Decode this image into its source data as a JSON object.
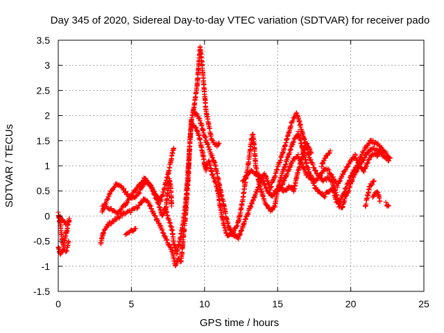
{
  "chart_data": {
    "type": "scatter",
    "title": "Day 345 of 2020, Sidereal Day-to-day VTEC variation (SDTVAR) for receiver pado",
    "xlabel": "GPS time / hours",
    "ylabel": "SDTVAR / TECUs",
    "xlim": [
      0,
      25
    ],
    "ylim": [
      -1.5,
      3.5
    ],
    "x_ticks": [
      0,
      5,
      10,
      15,
      20,
      25
    ],
    "x_tick_labels": [
      "0",
      "5",
      "10",
      "15",
      "20",
      "25"
    ],
    "y_ticks": [
      -1.5,
      -1,
      -0.5,
      0,
      0.5,
      1,
      1.5,
      2,
      2.5,
      3,
      3.5
    ],
    "y_tick_labels": [
      "-1.5",
      "-1",
      "-0.5",
      "0",
      "0.5",
      "1",
      "1.5",
      "2",
      "2.5",
      "3",
      "3.5"
    ],
    "grid": true,
    "marker": "+",
    "series": [
      {
        "name": "SDTVAR",
        "color": "#ff0000",
        "traces": [
          [
            [
              0.0,
              0.05
            ],
            [
              0.15,
              -0.2
            ],
            [
              0.25,
              -0.45
            ],
            [
              0.35,
              -0.6
            ],
            [
              0.5,
              -0.4
            ],
            [
              0.65,
              -0.2
            ],
            [
              0.75,
              -0.05
            ]
          ],
          [
            [
              0.0,
              -0.6
            ],
            [
              0.15,
              -0.75
            ],
            [
              0.35,
              -0.65
            ],
            [
              0.55,
              -0.7
            ],
            [
              0.7,
              -0.5
            ]
          ],
          [
            [
              0.05,
              0.0
            ],
            [
              0.3,
              -0.1
            ],
            [
              0.5,
              -0.15
            ],
            [
              0.75,
              -0.1
            ]
          ],
          [
            [
              2.9,
              -0.55
            ],
            [
              3.1,
              -0.3
            ],
            [
              3.5,
              -0.15
            ],
            [
              4.0,
              -0.05
            ],
            [
              4.5,
              0.05
            ],
            [
              5.0,
              0.1
            ],
            [
              5.5,
              0.2
            ],
            [
              5.9,
              0.35
            ],
            [
              6.2,
              0.25
            ],
            [
              6.5,
              0.05
            ],
            [
              6.9,
              -0.15
            ],
            [
              7.2,
              -0.35
            ],
            [
              7.5,
              -0.55
            ],
            [
              7.8,
              -0.7
            ],
            [
              8.0,
              -1.0
            ],
            [
              8.2,
              -0.85
            ],
            [
              8.4,
              -0.9
            ],
            [
              8.5,
              -0.6
            ]
          ],
          [
            [
              3.0,
              0.1
            ],
            [
              3.3,
              0.3
            ],
            [
              3.6,
              0.5
            ],
            [
              4.0,
              0.65
            ],
            [
              4.4,
              0.55
            ],
            [
              4.8,
              0.4
            ],
            [
              5.2,
              0.35
            ],
            [
              5.6,
              0.5
            ],
            [
              6.0,
              0.7
            ],
            [
              6.3,
              0.6
            ],
            [
              6.6,
              0.45
            ],
            [
              7.0,
              0.3
            ],
            [
              7.3,
              0.6
            ],
            [
              7.6,
              0.95
            ],
            [
              7.8,
              1.25
            ],
            [
              7.9,
              1.35
            ]
          ],
          [
            [
              3.0,
              0.2
            ],
            [
              3.5,
              0.15
            ],
            [
              4.0,
              0.05
            ],
            [
              4.5,
              0.2
            ],
            [
              5.0,
              0.4
            ],
            [
              5.5,
              0.6
            ],
            [
              5.9,
              0.75
            ],
            [
              6.3,
              0.6
            ],
            [
              6.6,
              0.4
            ],
            [
              6.9,
              0.2
            ],
            [
              7.1,
              0.0
            ],
            [
              7.3,
              0.15
            ],
            [
              7.6,
              -0.1
            ],
            [
              7.8,
              -0.3
            ],
            [
              7.9,
              -0.55
            ],
            [
              8.1,
              -0.75
            ],
            [
              8.3,
              -0.5
            ],
            [
              8.5,
              -0.2
            ],
            [
              8.7,
              0.2
            ],
            [
              8.9,
              1.0
            ],
            [
              9.1,
              1.9
            ],
            [
              9.3,
              2.2
            ],
            [
              9.5,
              2.6
            ],
            [
              9.6,
              3.0
            ],
            [
              9.7,
              3.35
            ],
            [
              9.8,
              3.1
            ],
            [
              9.9,
              2.8
            ],
            [
              10.0,
              2.45
            ],
            [
              10.1,
              2.1
            ],
            [
              10.3,
              1.8
            ],
            [
              10.5,
              1.5
            ],
            [
              10.7,
              1.45
            ],
            [
              10.9,
              1.4
            ],
            [
              11.0,
              1.45
            ]
          ],
          [
            [
              4.6,
              -0.35
            ],
            [
              5.0,
              -0.3
            ],
            [
              5.3,
              -0.25
            ]
          ],
          [
            [
              7.35,
              0.1
            ],
            [
              7.5,
              0.55
            ],
            [
              7.6,
              0.75
            ],
            [
              7.7,
              0.55
            ],
            [
              7.75,
              0.2
            ]
          ],
          [
            [
              8.5,
              -0.6
            ],
            [
              8.7,
              0.0
            ],
            [
              8.9,
              0.8
            ],
            [
              9.0,
              1.5
            ],
            [
              9.1,
              1.85
            ],
            [
              9.3,
              1.8
            ],
            [
              9.5,
              1.7
            ],
            [
              9.7,
              1.5
            ],
            [
              9.9,
              1.2
            ],
            [
              10.1,
              0.9
            ],
            [
              10.3,
              1.1
            ],
            [
              10.5,
              0.85
            ],
            [
              10.7,
              0.7
            ],
            [
              10.9,
              0.5
            ],
            [
              11.1,
              0.15
            ],
            [
              11.3,
              -0.15
            ],
            [
              11.5,
              -0.35
            ],
            [
              11.7,
              -0.4
            ],
            [
              11.9,
              -0.35
            ],
            [
              12.1,
              -0.25
            ],
            [
              12.3,
              -0.15
            ],
            [
              12.4,
              0.0
            ],
            [
              12.6,
              0.3
            ],
            [
              12.8,
              0.7
            ],
            [
              13.0,
              1.05
            ],
            [
              13.2,
              1.5
            ],
            [
              13.3,
              1.65
            ],
            [
              13.4,
              1.4
            ],
            [
              13.5,
              1.0
            ],
            [
              13.7,
              0.7
            ],
            [
              13.9,
              0.5
            ],
            [
              14.1,
              0.3
            ],
            [
              14.4,
              0.15
            ],
            [
              14.6,
              0.1
            ],
            [
              14.8,
              0.2
            ],
            [
              15.0,
              0.5
            ],
            [
              15.2,
              0.75
            ],
            [
              15.5,
              1.0
            ],
            [
              15.8,
              1.25
            ],
            [
              16.1,
              1.5
            ],
            [
              16.4,
              1.65
            ],
            [
              16.7,
              1.35
            ],
            [
              17.0,
              1.0
            ],
            [
              17.3,
              0.75
            ],
            [
              17.6,
              0.55
            ],
            [
              17.9,
              0.45
            ],
            [
              18.2,
              0.4
            ],
            [
              18.5,
              0.5
            ],
            [
              18.8,
              0.55
            ],
            [
              19.0,
              0.3
            ],
            [
              19.2,
              0.25
            ],
            [
              19.5,
              0.45
            ],
            [
              19.8,
              0.65
            ],
            [
              20.1,
              0.85
            ],
            [
              20.5,
              1.05
            ],
            [
              20.8,
              1.25
            ],
            [
              21.1,
              1.4
            ],
            [
              21.4,
              1.5
            ],
            [
              21.7,
              1.45
            ],
            [
              22.0,
              1.4
            ]
          ],
          [
            [
              9.3,
              2.05
            ],
            [
              9.5,
              2.0
            ],
            [
              9.7,
              1.9
            ],
            [
              9.9,
              1.7
            ],
            [
              10.1,
              1.5
            ],
            [
              10.3,
              1.35
            ],
            [
              10.5,
              1.2
            ],
            [
              10.7,
              1.05
            ],
            [
              10.9,
              0.8
            ],
            [
              11.1,
              0.5
            ],
            [
              11.3,
              0.25
            ],
            [
              11.5,
              -0.05
            ],
            [
              11.7,
              -0.25
            ],
            [
              11.9,
              -0.35
            ],
            [
              12.1,
              -0.4
            ],
            [
              12.3,
              -0.45
            ],
            [
              12.5,
              -0.3
            ],
            [
              12.7,
              -0.15
            ],
            [
              12.9,
              0.0
            ],
            [
              13.1,
              0.15
            ],
            [
              13.3,
              0.3
            ],
            [
              13.5,
              0.45
            ],
            [
              13.7,
              0.6
            ],
            [
              13.9,
              0.75
            ],
            [
              14.1,
              0.85
            ],
            [
              14.3,
              0.7
            ],
            [
              14.5,
              0.55
            ],
            [
              14.8,
              0.8
            ],
            [
              15.1,
              1.05
            ],
            [
              15.4,
              1.3
            ],
            [
              15.7,
              1.6
            ],
            [
              16.0,
              1.9
            ],
            [
              16.3,
              2.05
            ],
            [
              16.6,
              1.75
            ],
            [
              16.9,
              1.45
            ],
            [
              17.2,
              1.15
            ],
            [
              17.5,
              0.95
            ],
            [
              17.8,
              0.8
            ],
            [
              18.1,
              0.7
            ],
            [
              18.4,
              0.75
            ],
            [
              18.7,
              0.7
            ],
            [
              19.0,
              0.45
            ],
            [
              19.2,
              0.2
            ],
            [
              19.4,
              0.15
            ],
            [
              19.6,
              0.35
            ],
            [
              19.9,
              0.55
            ],
            [
              20.2,
              0.8
            ],
            [
              20.6,
              1.0
            ],
            [
              21.0,
              1.2
            ],
            [
              21.4,
              1.35
            ],
            [
              21.8,
              1.3
            ],
            [
              22.2,
              1.2
            ],
            [
              22.6,
              1.1
            ]
          ],
          [
            [
              12.6,
              0.7
            ],
            [
              12.9,
              0.8
            ],
            [
              13.2,
              0.9
            ],
            [
              13.5,
              0.85
            ],
            [
              13.8,
              0.8
            ],
            [
              14.0,
              0.7
            ],
            [
              14.3,
              0.5
            ],
            [
              14.6,
              0.4
            ],
            [
              14.9,
              0.5
            ],
            [
              15.2,
              0.55
            ],
            [
              15.5,
              0.75
            ],
            [
              15.8,
              0.95
            ],
            [
              16.1,
              1.15
            ],
            [
              16.4,
              1.2
            ],
            [
              16.7,
              1.0
            ],
            [
              17.0,
              0.8
            ],
            [
              17.3,
              0.75
            ],
            [
              17.6,
              0.7
            ],
            [
              17.9,
              0.8
            ],
            [
              18.2,
              0.95
            ],
            [
              18.5,
              0.9
            ],
            [
              18.8,
              0.75
            ],
            [
              19.1,
              0.6
            ],
            [
              19.4,
              0.8
            ],
            [
              19.7,
              0.95
            ],
            [
              20.0,
              1.1
            ],
            [
              20.3,
              1.2
            ],
            [
              20.6,
              1.0
            ],
            [
              20.9,
              0.9
            ],
            [
              21.2,
              1.1
            ],
            [
              21.5,
              1.25
            ],
            [
              21.8,
              1.2
            ],
            [
              22.1,
              1.35
            ],
            [
              22.4,
              1.25
            ],
            [
              22.7,
              1.15
            ]
          ],
          [
            [
              15.2,
              0.55
            ],
            [
              15.5,
              0.5
            ],
            [
              15.8,
              0.6
            ],
            [
              16.1,
              0.5
            ],
            [
              16.4,
              0.9
            ],
            [
              16.7,
              1.2
            ],
            [
              17.0,
              1.45
            ],
            [
              17.3,
              1.25
            ]
          ],
          [
            [
              18.0,
              1.0
            ],
            [
              18.3,
              1.2
            ],
            [
              18.6,
              1.3
            ]
          ],
          [
            [
              21.0,
              0.2
            ],
            [
              21.3,
              0.6
            ],
            [
              21.6,
              0.7
            ]
          ],
          [
            [
              21.5,
              0.35
            ],
            [
              21.8,
              0.5
            ],
            [
              22.0,
              0.3
            ]
          ],
          [
            [
              22.4,
              0.25
            ],
            [
              22.6,
              0.2
            ]
          ]
        ]
      }
    ]
  }
}
